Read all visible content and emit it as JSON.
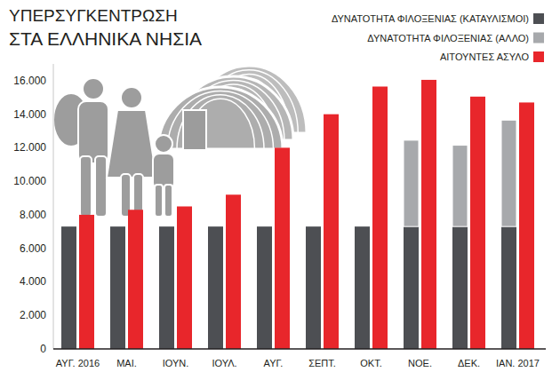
{
  "chart_data": {
    "type": "bar",
    "title": "ΥΠΕΡΣΥΓΚΕΝΤΡΩΣΗ",
    "subtitle": "ΣΤΑ ΕΛΛΗΝΙΚΑ ΝΗΣΙΑ",
    "categories": [
      "ΑΥΓ. 2016",
      "ΜΑΙ.",
      "ΙΟΥΝ.",
      "ΙΟΥΛ.",
      "ΑΥΓ.",
      "ΣΕΠΤ.",
      "ΟΚΤ.",
      "ΝΟΕ.",
      "ΔΕΚ.",
      "ΙΑΝ. 2017"
    ],
    "series": [
      {
        "name": "ΔΥΝΑΤΟΤΗΤΑ ΦΙΛΟΞΕΝΙΑΣ (ΚΑΤΑΥΛΙΣΜΟΙ)",
        "color": "#4d4f53",
        "stacked": true,
        "values": [
          7300,
          7300,
          7300,
          7300,
          7300,
          7300,
          7300,
          7300,
          7300,
          7300
        ]
      },
      {
        "name": "ΔΥΝΑΤΟΤΗΤΑ ΦΙΛΟΞΕΝΙΑΣ (ΑΛΛΟ)",
        "color": "#a7a9ac",
        "stacked": true,
        "values": [
          null,
          null,
          null,
          null,
          null,
          null,
          null,
          5150,
          4850,
          6350
        ]
      },
      {
        "name": "ΑΙΤΟΥΝΤΕΣ ΑΣΥΛΟ",
        "color": "#e8262b",
        "values": [
          8000,
          8300,
          8500,
          9200,
          12000,
          14000,
          15650,
          16050,
          15050,
          14700
        ]
      }
    ],
    "ylim": [
      0,
      17000
    ],
    "yticks": [
      0,
      {
        "value": 2000,
        "label": "2.000"
      },
      {
        "value": 4000,
        "label": "4.000"
      },
      {
        "value": 6000,
        "label": "6.000"
      },
      {
        "value": 8000,
        "label": "8.000"
      },
      {
        "value": 10000,
        "label": "10.000"
      },
      {
        "value": 12000,
        "label": "12.000"
      },
      {
        "value": 14000,
        "label": "14.000"
      },
      {
        "value": 16000,
        "label": "16.000"
      }
    ],
    "grid": false,
    "legend": "top-right",
    "data_labels": false
  }
}
